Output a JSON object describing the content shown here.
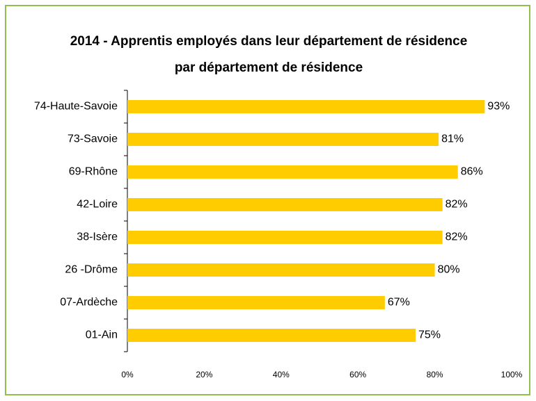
{
  "chart_data": {
    "type": "bar",
    "orientation": "horizontal",
    "title": [
      "2014 - Apprentis employés dans leur département de résidence",
      "par département de résidence"
    ],
    "categories": [
      "74-Haute-Savoie",
      "73-Savoie",
      "69-Rhône",
      "42-Loire",
      "38-Isère",
      "26 -Drôme",
      "07-Ardèche",
      "01-Ain"
    ],
    "values": [
      93,
      81,
      86,
      82,
      82,
      80,
      67,
      75
    ],
    "value_labels": [
      "93%",
      "81%",
      "86%",
      "82%",
      "82%",
      "80%",
      "67%",
      "75%"
    ],
    "color": "#ffcc00",
    "xlim": [
      0,
      100
    ],
    "xticks": [
      {
        "value": 0,
        "label": "0%"
      },
      {
        "value": 20,
        "label": "20%"
      },
      {
        "value": 40,
        "label": "40%"
      },
      {
        "value": 60,
        "label": "60%"
      },
      {
        "value": 80,
        "label": "80%"
      },
      {
        "value": 100,
        "label": "100%"
      }
    ]
  }
}
